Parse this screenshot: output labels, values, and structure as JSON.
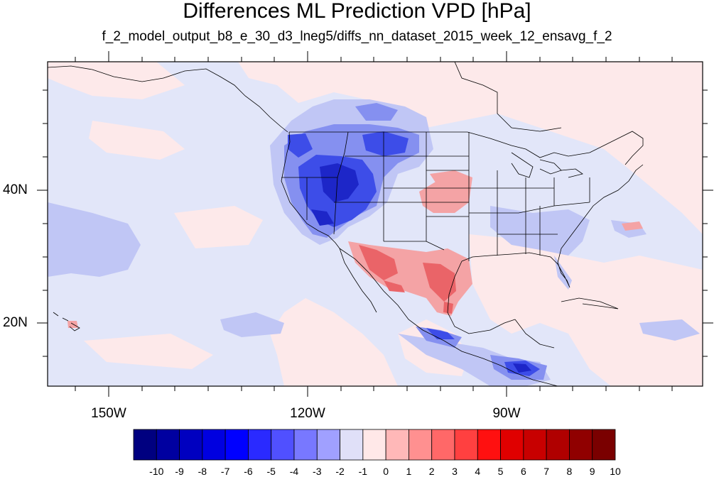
{
  "title": "Differences ML Prediction VPD [hPa]",
  "subtitle": "f_2_model_output_b8_e_30_d3_lneg5/diffs_nn_dataset_2015_week_12_ensavg_f_2",
  "lat_labels": [
    "40N",
    "20N"
  ],
  "lon_labels": [
    "150W",
    "120W",
    "90W"
  ],
  "colorbar": {
    "labels": [
      "-10",
      "-9",
      "-8",
      "-7",
      "-6",
      "-5",
      "-4",
      "-3",
      "-2",
      "-1",
      "0",
      "1",
      "2",
      "3",
      "4",
      "5",
      "6",
      "7",
      "8",
      "9",
      "10"
    ],
    "colors": [
      "#000080",
      "#0000a0",
      "#0000c0",
      "#0000e0",
      "#0000ff",
      "#2a2aff",
      "#5050ff",
      "#7878ff",
      "#a0a0ff",
      "#e0e0f8",
      "#ffe8e8",
      "#ffb8b8",
      "#ff9090",
      "#ff6868",
      "#ff4040",
      "#ff1010",
      "#e00000",
      "#c80000",
      "#b00000",
      "#900000",
      "#7a0000"
    ]
  },
  "colors": {
    "ocean_background": "#e2e6f9",
    "weak_positive": "#fde9ea",
    "weak_negative": "#c0c6f5",
    "moderate_negative": "#8590f0",
    "strong_negative": "#3d4de8",
    "very_strong_negative": "#1d26c8",
    "moderate_positive": "#f4a3a5",
    "strong_positive": "#ea6468",
    "coastline": "#000000"
  }
}
